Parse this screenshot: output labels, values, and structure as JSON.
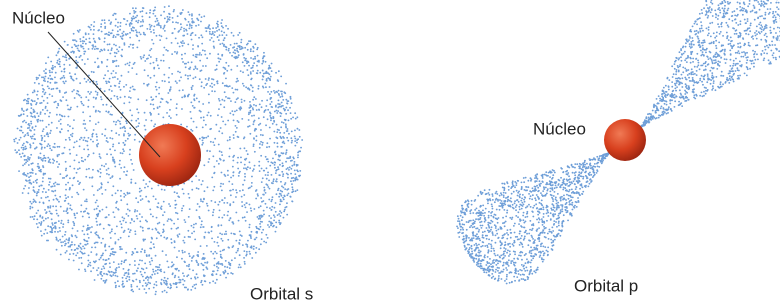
{
  "orbital_s": {
    "nucleus_label": "Núcleo",
    "label": "Orbital s"
  },
  "orbital_p": {
    "nucleus_label": "Núcleo",
    "label": "Orbital p"
  }
}
